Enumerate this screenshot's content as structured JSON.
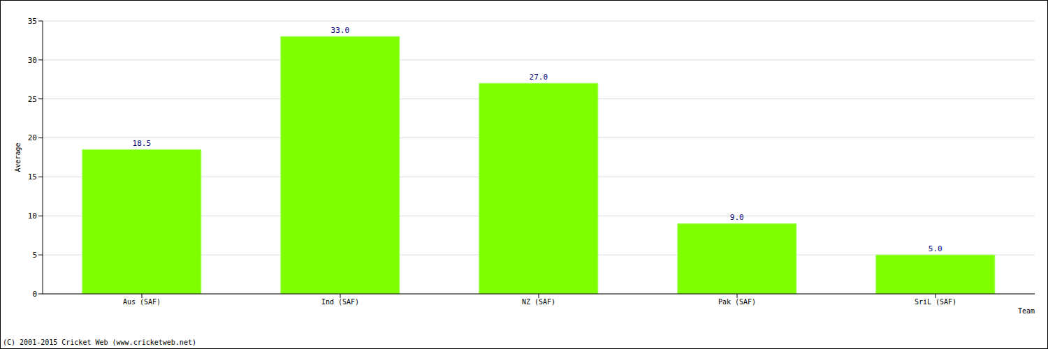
{
  "chart_data": {
    "type": "bar",
    "categories": [
      "Aus (SAF)",
      "Ind (SAF)",
      "NZ (SAF)",
      "Pak (SAF)",
      "SriL (SAF)"
    ],
    "values": [
      18.5,
      33.0,
      27.0,
      9.0,
      5.0
    ],
    "value_labels": [
      "18.5",
      "33.0",
      "27.0",
      "9.0",
      "5.0"
    ],
    "data_labels": true,
    "color": "#80ff00",
    "x_label": "Team",
    "y_label": "Average",
    "ylim": [
      0,
      35
    ],
    "yticks": [
      0,
      5,
      10,
      15,
      20,
      25,
      30,
      35
    ],
    "grid": true,
    "annotations": [
      "(C) 2001-2015 Cricket Web (www.cricketweb.net)"
    ]
  }
}
